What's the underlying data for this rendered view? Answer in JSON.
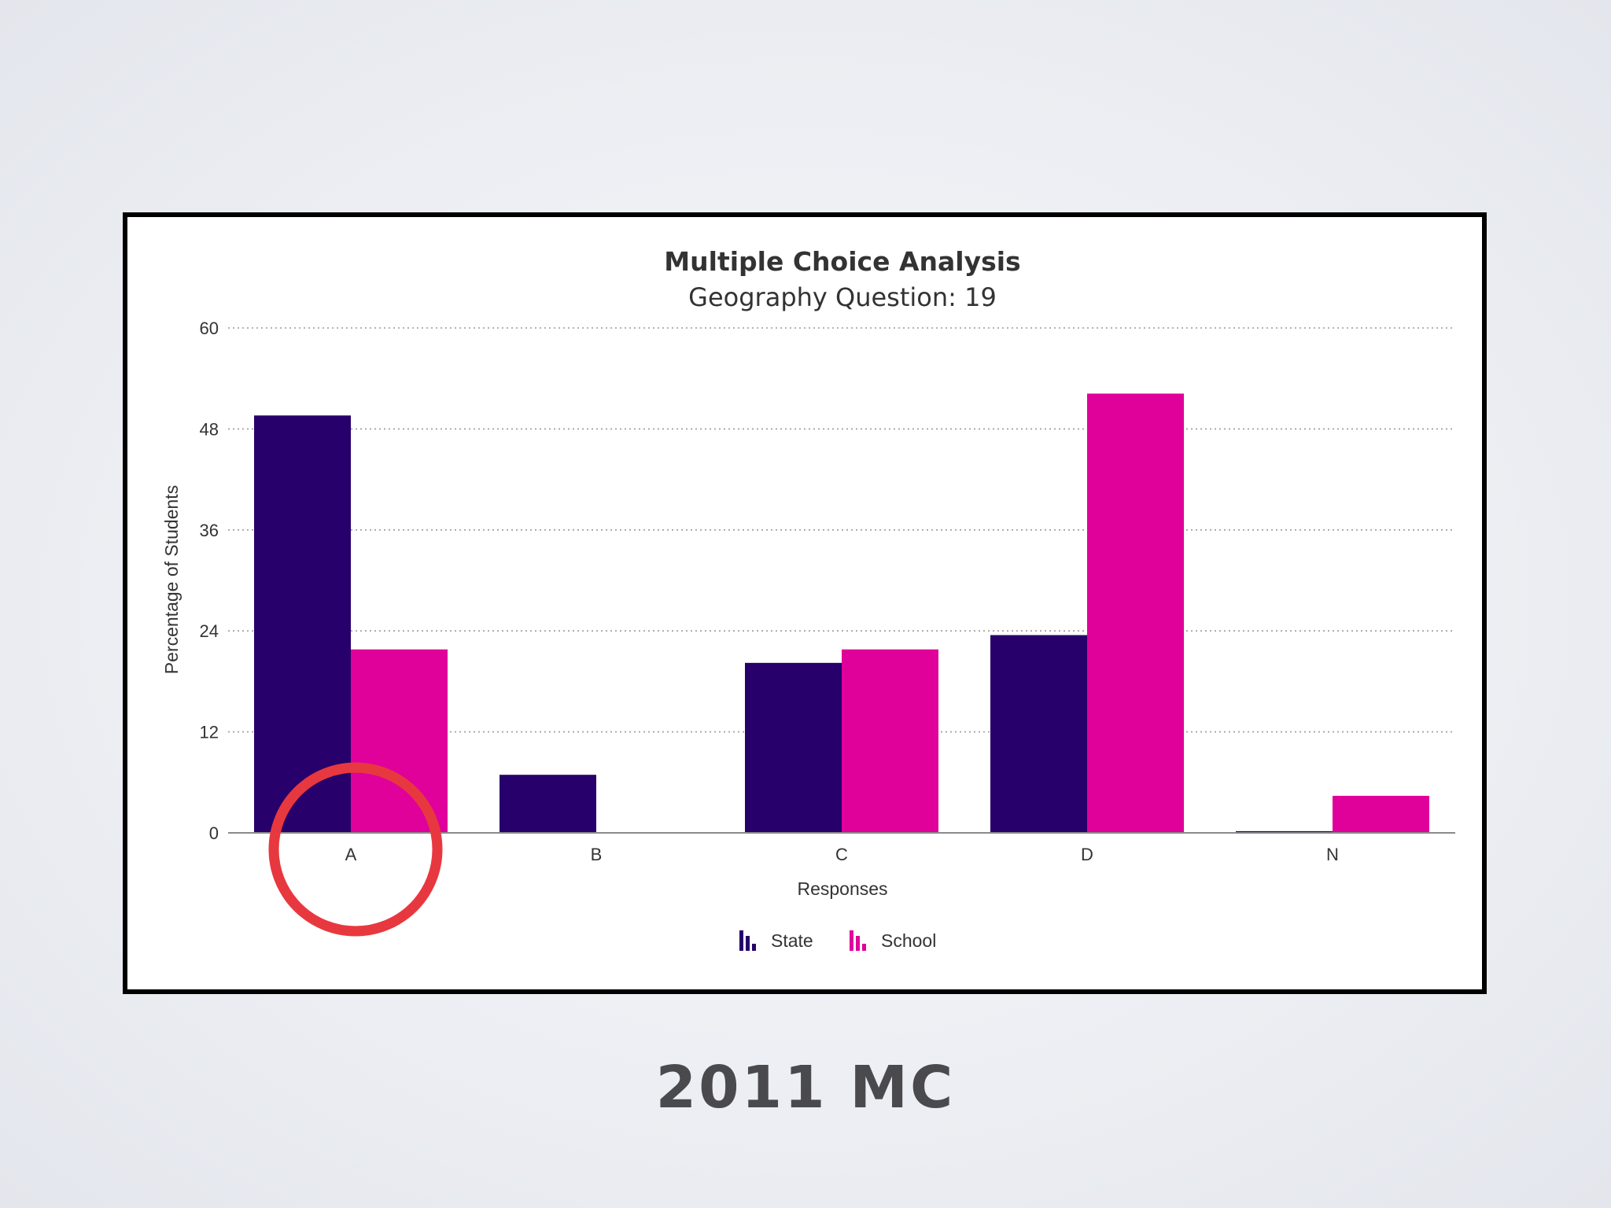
{
  "slide": {
    "caption": "2011 MC"
  },
  "colors": {
    "state": "#28006b",
    "school": "#e0009a",
    "highlight_circle": "#e8383f"
  },
  "chart_data": {
    "type": "bar",
    "title": "Multiple Choice Analysis",
    "subtitle": "Geography Question: 19",
    "xlabel": "Responses",
    "ylabel": "Percentage of Students",
    "categories": [
      "A",
      "B",
      "C",
      "D",
      "N"
    ],
    "series": [
      {
        "name": "State",
        "values": [
          49.6,
          6.9,
          20.2,
          23.5,
          0.2
        ]
      },
      {
        "name": "School",
        "values": [
          21.8,
          0,
          21.8,
          52.2,
          4.4
        ]
      }
    ],
    "ylim": [
      0,
      60
    ],
    "yticks": [
      0,
      12,
      24,
      36,
      48,
      60
    ],
    "grid": true,
    "legend": "bottom-center",
    "highlighted_category": "A"
  }
}
